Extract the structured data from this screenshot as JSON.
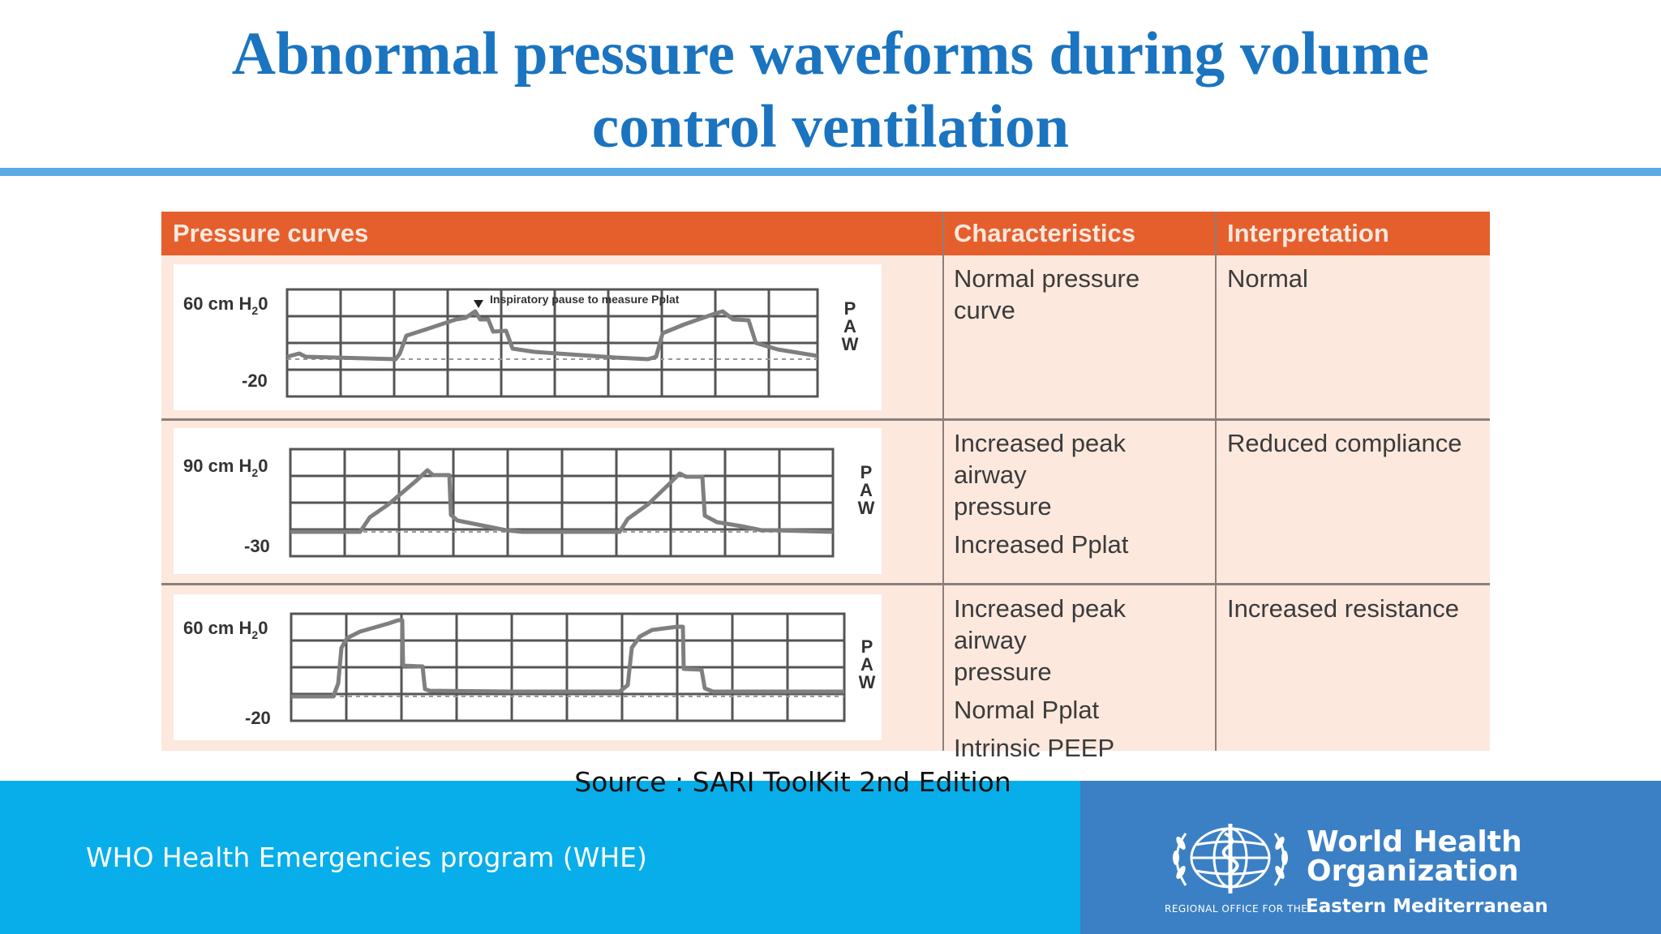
{
  "slide": {
    "title_line1": "Abnormal pressure waveforms during volume",
    "title_line2": "control ventilation",
    "source": "Source : SARI ToolKit 2nd Edition",
    "program": "WHO Health Emergencies program (WHE)"
  },
  "table": {
    "headers": {
      "curves": "Pressure curves",
      "characteristics": "Characteristics",
      "interpretation": "Interpretation"
    },
    "rows": [
      {
        "scale_top": "60 cm H",
        "scale_top_sub": "2",
        "scale_top_end": "0",
        "scale_bottom": "-20",
        "axis_label": [
          "P",
          "A",
          "W"
        ],
        "annotation": "Inspiratory pause to measure Pplat",
        "characteristics": [
          "Normal pressure curve"
        ],
        "interpretation": "Normal"
      },
      {
        "scale_top": "90 cm H",
        "scale_top_sub": "2",
        "scale_top_end": "0",
        "scale_bottom": "-30",
        "axis_label": [
          "P",
          "A",
          "W"
        ],
        "characteristics": [
          "Increased peak airway",
          "pressure",
          "Increased Pplat"
        ],
        "interpretation": "Reduced compliance"
      },
      {
        "scale_top": "60 cm H",
        "scale_top_sub": "2",
        "scale_top_end": "0",
        "scale_bottom": "-20",
        "axis_label": [
          "P",
          "A",
          "W"
        ],
        "characteristics": [
          "Increased peak airway",
          "pressure",
          "Normal Pplat",
          "Intrinsic PEEP"
        ],
        "interpretation": "Increased resistance"
      }
    ]
  },
  "logo": {
    "name_line1": "World Health",
    "name_line2": "Organization",
    "region_small": "REGIONAL OFFICE FOR THE",
    "region_big": "Eastern Mediterranean"
  },
  "colors": {
    "title": "#1a74c0",
    "header_bg": "#e55f2d",
    "table_bg": "#fde8de",
    "footer_left": "#07aeea",
    "footer_right": "#3b80c4"
  }
}
